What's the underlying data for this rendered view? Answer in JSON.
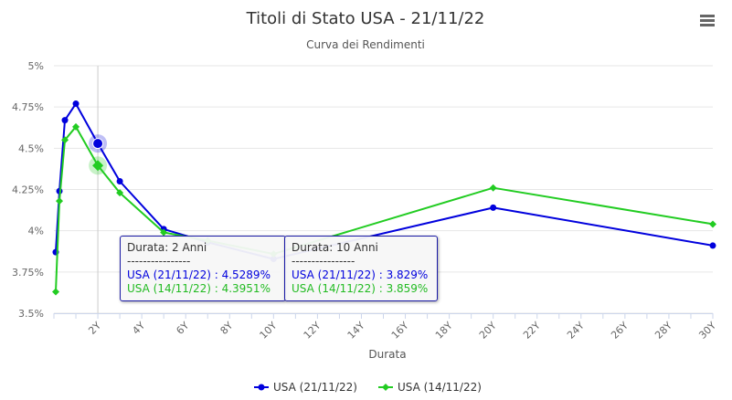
{
  "chart_data": {
    "type": "line",
    "title": "Titoli di Stato USA - 21/11/22",
    "subtitle": "Curva dei Rendimenti",
    "xlabel": "Durata",
    "ylabel": "",
    "xlim": [
      0,
      30
    ],
    "ylim": [
      3.5,
      5.0
    ],
    "x_ticks": [
      "2Y",
      "4Y",
      "6Y",
      "8Y",
      "10Y",
      "12Y",
      "14Y",
      "16Y",
      "18Y",
      "20Y",
      "22Y",
      "24Y",
      "26Y",
      "28Y",
      "30Y"
    ],
    "x_tick_values": [
      2,
      4,
      6,
      8,
      10,
      12,
      14,
      16,
      18,
      20,
      22,
      24,
      26,
      28,
      30
    ],
    "y_ticks": [
      "3.5%",
      "3.75%",
      "4%",
      "4.25%",
      "4.5%",
      "4.75%",
      "5%"
    ],
    "y_tick_values": [
      3.5,
      3.75,
      4.0,
      4.25,
      4.5,
      4.75,
      5.0
    ],
    "grid": true,
    "legend_position": "bottom-center",
    "series": [
      {
        "name": "USA (21/11/22)",
        "color": "#0000dd",
        "marker": "circle",
        "x": [
          0.083,
          0.25,
          0.5,
          1,
          2,
          3,
          5,
          7,
          10,
          20,
          30
        ],
        "y": [
          3.87,
          4.24,
          4.67,
          4.77,
          4.5289,
          4.3,
          4.01,
          3.93,
          3.829,
          4.14,
          3.91
        ]
      },
      {
        "name": "USA (14/11/22)",
        "color": "#22cc22",
        "marker": "diamond",
        "x": [
          0.083,
          0.25,
          0.5,
          1,
          2,
          3,
          5,
          7,
          10,
          20,
          30
        ],
        "y": [
          3.63,
          4.18,
          4.55,
          4.63,
          4.3951,
          4.23,
          3.99,
          3.94,
          3.859,
          4.26,
          4.04
        ]
      }
    ],
    "tooltips": [
      {
        "title": "Durata: 2 Anni",
        "separator": "----------------",
        "line1": "USA (21/11/22) : 4.5289%",
        "line2": "USA (14/11/22) : 4.3951%"
      },
      {
        "title": "Durata: 10 Anni",
        "separator": "----------------",
        "line1": "USA (21/11/22) : 3.829%",
        "line2": "USA (14/11/22) : 3.859%"
      }
    ],
    "crosshair_x": 2,
    "hover_x": 2
  },
  "menu_icon": "hamburger-menu-icon"
}
